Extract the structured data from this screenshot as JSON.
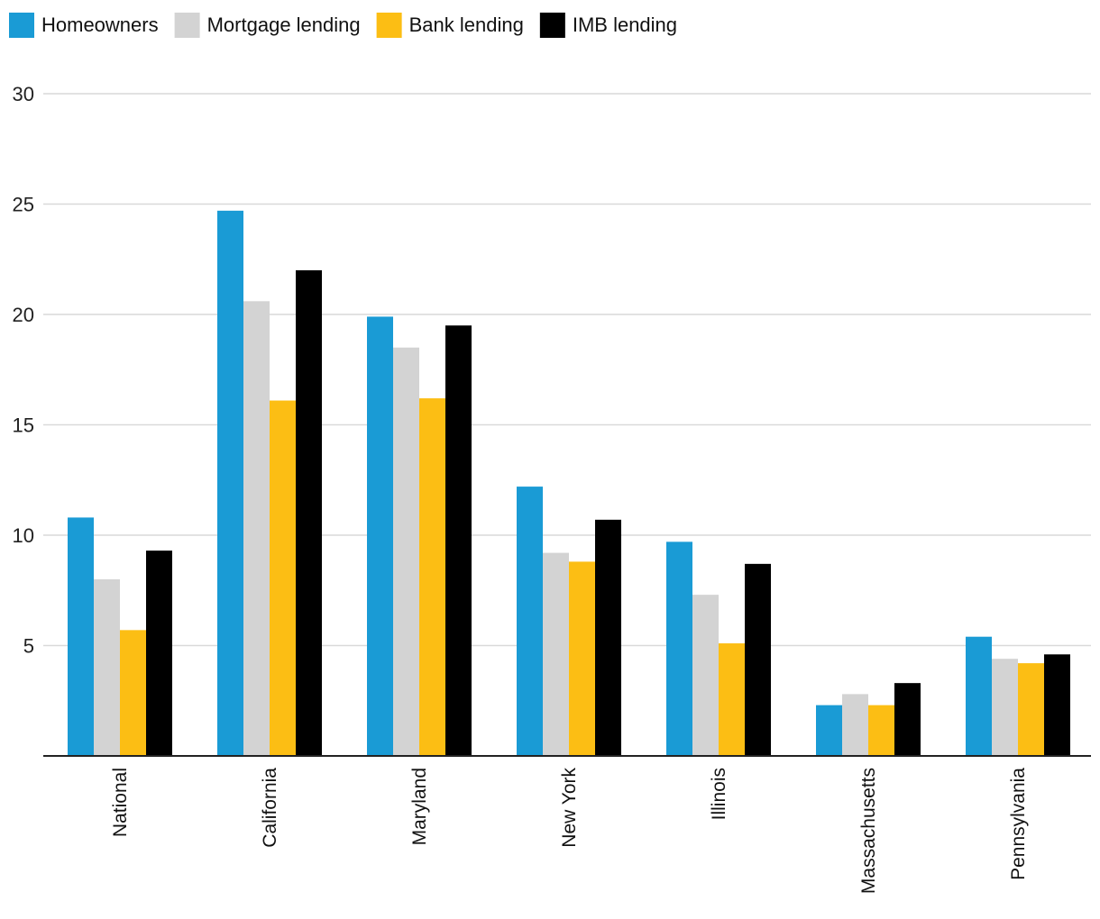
{
  "chart_data": {
    "type": "bar",
    "title": "",
    "xlabel": "",
    "ylabel": "",
    "ylim": [
      0,
      30
    ],
    "yticks": [
      5,
      10,
      15,
      20,
      25,
      30
    ],
    "grid": true,
    "legend_position": "top-left",
    "categories": [
      "National",
      "California",
      "Maryland",
      "New York",
      "Illinois",
      "Massachusetts",
      "Pennsylvania"
    ],
    "series": [
      {
        "name": "Homeowners",
        "color": "#1a9bd5",
        "values": [
          10.8,
          24.7,
          19.9,
          12.2,
          9.7,
          2.3,
          5.4
        ]
      },
      {
        "name": "Mortgage lending",
        "color": "#d3d3d3",
        "values": [
          8.0,
          20.6,
          18.5,
          9.2,
          7.3,
          2.8,
          4.4
        ]
      },
      {
        "name": "Bank lending",
        "color": "#fcbe14",
        "values": [
          5.7,
          16.1,
          16.2,
          8.8,
          5.1,
          2.3,
          4.2
        ]
      },
      {
        "name": "IMB lending",
        "color": "#000000",
        "values": [
          9.3,
          22.0,
          19.5,
          10.7,
          8.7,
          3.3,
          4.6
        ]
      }
    ]
  }
}
